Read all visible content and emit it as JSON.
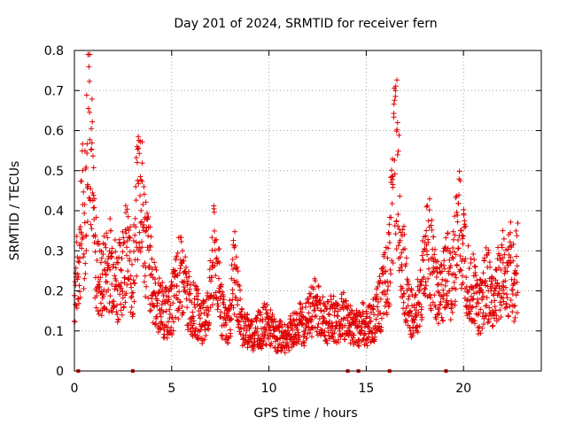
{
  "chart_data": {
    "type": "scatter",
    "title": "Day 201 of 2024, SRMTID for receiver fern",
    "xlabel": "GPS time / hours",
    "ylabel": "SRMTID / TECUs",
    "xlim": [
      0,
      24
    ],
    "ylim": [
      0,
      0.8
    ],
    "xticks": [
      0,
      5,
      10,
      15,
      20
    ],
    "xtick_labels": [
      "0",
      "5",
      "10",
      "15",
      "20"
    ],
    "yticks": [
      0,
      0.1,
      0.2,
      0.3,
      0.4,
      0.5,
      0.6,
      0.7,
      0.8
    ],
    "ytick_labels": [
      "0",
      "0.1",
      "0.2",
      "0.3",
      "0.4",
      "0.5",
      "0.6",
      "0.7",
      "0.8"
    ],
    "grid": true,
    "marker": "+",
    "color": "#e00000",
    "series": [
      {
        "name": "SRMTID",
        "x": [
          0.0,
          0.3,
          0.4,
          0.5,
          0.6,
          0.7,
          0.75,
          0.8,
          0.85,
          0.9,
          0.95,
          1.0,
          1.1,
          1.2,
          1.4,
          1.6,
          1.8,
          2.0,
          2.2,
          2.4,
          2.6,
          2.8,
          3.0,
          3.1,
          3.2,
          3.3,
          3.4,
          3.5,
          3.6,
          3.8,
          4.0,
          4.2,
          4.4,
          4.6,
          4.8,
          5.0,
          5.2,
          5.4,
          5.6,
          5.8,
          6.0,
          6.2,
          6.4,
          6.6,
          6.8,
          7.0,
          7.2,
          7.4,
          7.6,
          7.8,
          8.0,
          8.2,
          8.4,
          8.6,
          8.8,
          9.0,
          9.2,
          9.4,
          9.6,
          9.8,
          10.0,
          10.2,
          10.4,
          10.6,
          10.8,
          11.0,
          11.2,
          11.4,
          11.6,
          11.8,
          12.0,
          12.2,
          12.4,
          12.6,
          12.8,
          13.0,
          13.2,
          13.4,
          13.6,
          13.8,
          14.0,
          14.2,
          14.4,
          14.6,
          14.8,
          15.0,
          15.2,
          15.4,
          15.6,
          15.8,
          16.0,
          16.2,
          16.3,
          16.4,
          16.5,
          16.6,
          16.7,
          16.8,
          17.0,
          17.2,
          17.4,
          17.6,
          17.8,
          18.0,
          18.2,
          18.4,
          18.6,
          18.8,
          19.0,
          19.2,
          19.4,
          19.6,
          19.8,
          20.0,
          20.2,
          20.4,
          20.6,
          20.8,
          21.0,
          21.2,
          21.4,
          21.6,
          21.8,
          22.0,
          22.2,
          22.4,
          22.6,
          22.8
        ],
        "y": [
          0.19,
          0.3,
          0.42,
          0.36,
          0.45,
          0.65,
          0.78,
          0.72,
          0.6,
          0.5,
          0.42,
          0.34,
          0.28,
          0.24,
          0.22,
          0.25,
          0.27,
          0.26,
          0.22,
          0.24,
          0.3,
          0.27,
          0.22,
          0.3,
          0.38,
          0.48,
          0.46,
          0.4,
          0.34,
          0.28,
          0.22,
          0.18,
          0.16,
          0.15,
          0.14,
          0.16,
          0.2,
          0.24,
          0.22,
          0.18,
          0.16,
          0.15,
          0.14,
          0.12,
          0.14,
          0.2,
          0.3,
          0.24,
          0.14,
          0.11,
          0.13,
          0.26,
          0.18,
          0.12,
          0.1,
          0.1,
          0.09,
          0.11,
          0.1,
          0.12,
          0.11,
          0.1,
          0.08,
          0.09,
          0.08,
          0.09,
          0.1,
          0.11,
          0.12,
          0.11,
          0.13,
          0.15,
          0.17,
          0.15,
          0.13,
          0.12,
          0.14,
          0.13,
          0.12,
          0.14,
          0.13,
          0.12,
          0.1,
          0.11,
          0.12,
          0.11,
          0.12,
          0.13,
          0.15,
          0.18,
          0.22,
          0.3,
          0.38,
          0.48,
          0.55,
          0.5,
          0.4,
          0.32,
          0.22,
          0.16,
          0.13,
          0.15,
          0.2,
          0.28,
          0.32,
          0.25,
          0.2,
          0.18,
          0.22,
          0.24,
          0.2,
          0.32,
          0.36,
          0.3,
          0.25,
          0.22,
          0.2,
          0.15,
          0.2,
          0.22,
          0.19,
          0.18,
          0.22,
          0.25,
          0.23,
          0.26,
          0.22,
          0.27
        ]
      }
    ],
    "gap_markers_x": [
      0.2,
      3.0,
      14.05,
      14.6,
      16.2,
      19.1
    ]
  }
}
